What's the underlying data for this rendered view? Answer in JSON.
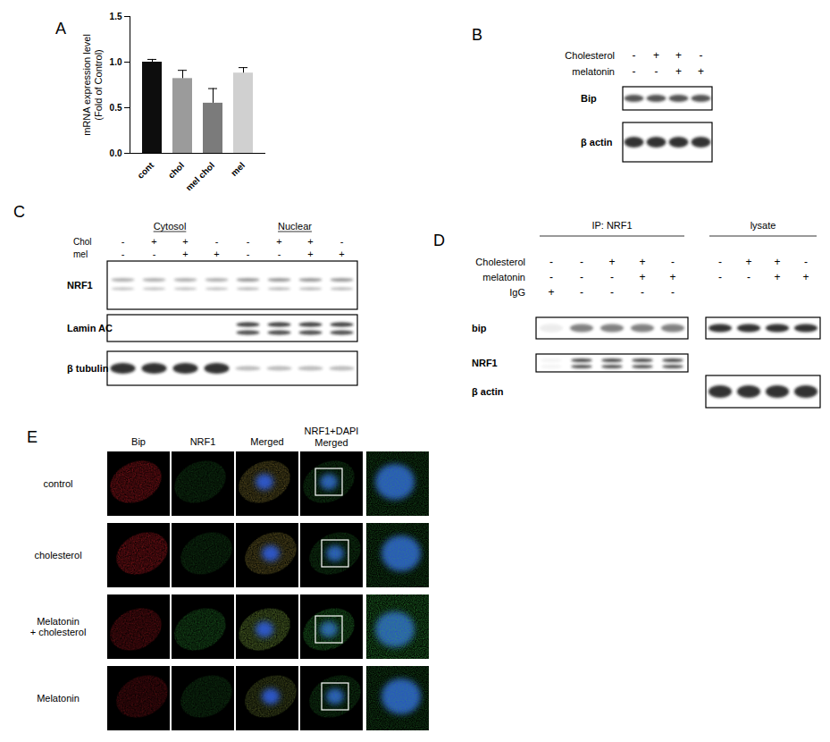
{
  "panel_labels": [
    "A",
    "B",
    "C",
    "D",
    "E"
  ],
  "chart_data": {
    "type": "bar",
    "y_label": "mRNA expression level\n(Fold of Control)",
    "categories": [
      "cont",
      "chol",
      "mel chol",
      "mel"
    ],
    "values": [
      1.0,
      0.82,
      0.55,
      0.88
    ],
    "errors": [
      0.03,
      0.09,
      0.16,
      0.06
    ],
    "colors": [
      "#0d0d0d",
      "#9b9b9b",
      "#7b7b7b",
      "#d0d0d0"
    ],
    "ylim": [
      0,
      1.5
    ],
    "yticks": [
      {
        "value": 0,
        "label": "0.0"
      },
      {
        "value": 0.5,
        "label": "0.5"
      },
      {
        "value": 1,
        "label": "1.0"
      },
      {
        "value": 1.5,
        "label": "1.5"
      }
    ]
  },
  "blot_B": {
    "conditions": [
      {
        "name": "Cholesterol",
        "signs": [
          "-",
          "+",
          "+",
          "-"
        ]
      },
      {
        "name": "melatonin",
        "signs": [
          "-",
          "-",
          "+",
          "+"
        ]
      }
    ],
    "bands": [
      "Bip",
      "β actin"
    ]
  },
  "blot_C": {
    "groups": [
      "Cytosol",
      "Nuclear"
    ],
    "conditions": [
      {
        "name": "Chol",
        "signs": [
          "-",
          "+",
          "+",
          "-",
          "-",
          "+",
          "+",
          "-"
        ]
      },
      {
        "name": "mel",
        "signs": [
          "-",
          "-",
          "+",
          "+",
          "-",
          "-",
          "+",
          "+"
        ]
      }
    ],
    "bands": [
      "NRF1",
      "Lamin AC",
      "β tubulin"
    ]
  },
  "blot_D": {
    "conditions": [
      "Cholesterol",
      "melatonin",
      "IgG"
    ],
    "bands": [
      "bip",
      "NRF1",
      "β actin"
    ],
    "groups": [
      {
        "title": "IP: NRF1",
        "signs": [
          [
            "-",
            "-",
            "+",
            "+",
            "-"
          ],
          [
            "-",
            "-",
            "-",
            "+",
            "+"
          ],
          [
            "+",
            "-",
            "-",
            "-",
            "-"
          ]
        ],
        "bands": [
          "bip",
          "NRF1"
        ]
      },
      {
        "title": "lysate",
        "signs": [
          [
            "-",
            "+",
            "+",
            "-"
          ],
          [
            "-",
            "-",
            "+",
            "+"
          ],
          null
        ],
        "bands": [
          "bip",
          "β actin"
        ]
      }
    ]
  },
  "images_E": {
    "columns": [
      "Bip",
      "NRF1",
      "Merged",
      "NRF1+DAPI\nMerged"
    ],
    "rows": [
      "control",
      "cholesterol",
      "Melatonin\n+ cholesterol",
      "Melatonin"
    ]
  }
}
